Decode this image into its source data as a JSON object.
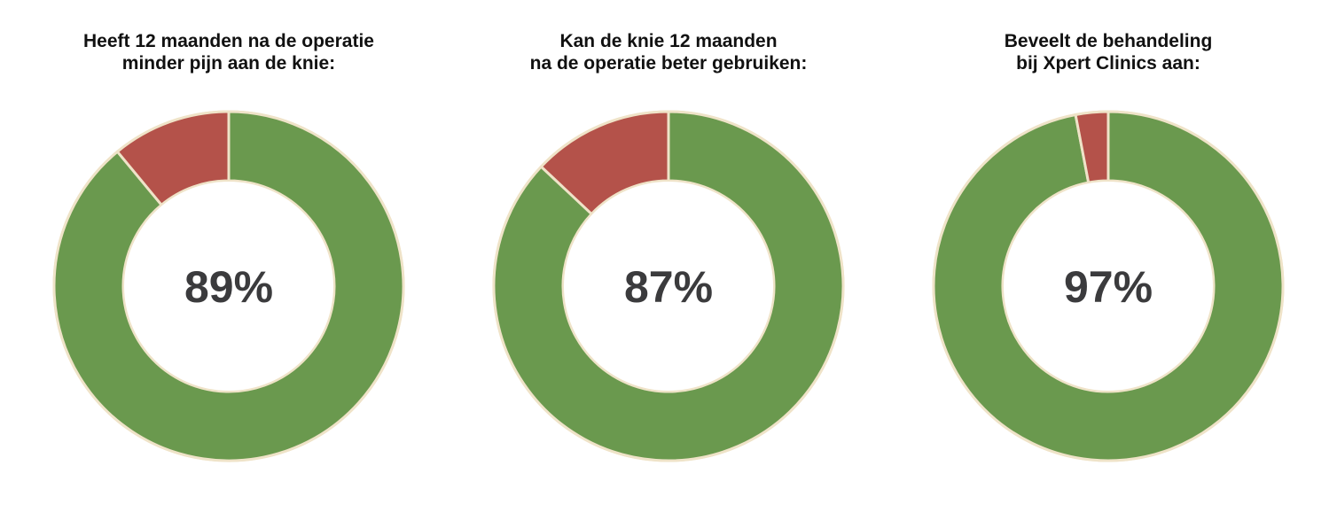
{
  "chart_data": [
    {
      "type": "pie",
      "title": "Heeft 12 maanden na de operatie\nminder pijn aan de knie:",
      "center_label": "89%",
      "values": [
        89,
        11
      ],
      "colors": [
        "#6a994e",
        "#b4524a"
      ]
    },
    {
      "type": "pie",
      "title": "Kan de knie 12 maanden\nna de operatie beter gebruiken:",
      "center_label": "87%",
      "values": [
        87,
        13
      ],
      "colors": [
        "#6a994e",
        "#b4524a"
      ]
    },
    {
      "type": "pie",
      "title": "Beveelt de behandeling\nbij Xpert Clinics aan:",
      "center_label": "97%",
      "values": [
        97,
        3
      ],
      "colors": [
        "#6a994e",
        "#b4524a"
      ]
    }
  ],
  "colors": {
    "separator": "#efe3c8",
    "text": "#3b3b3d"
  }
}
